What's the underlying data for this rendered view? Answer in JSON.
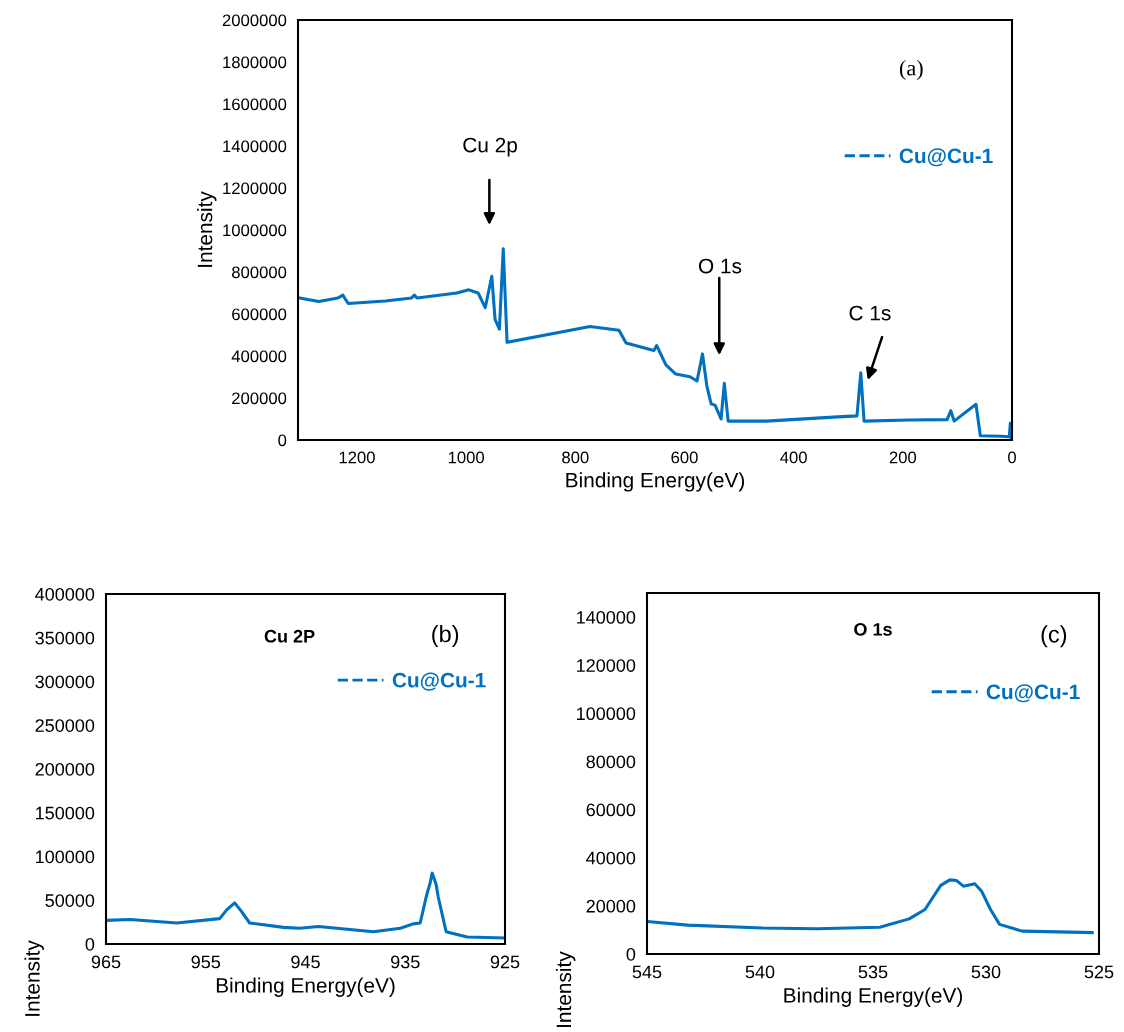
{
  "chart_data": [
    {
      "type": "line",
      "xlabel": "Binding Energy(eV)",
      "ylabel": "Intensity",
      "xlim": [
        1308,
        0
      ],
      "xticks": [
        1200,
        1000,
        800,
        600,
        400,
        200,
        0
      ],
      "ylim": [
        0,
        2000000
      ],
      "yticks": [
        0,
        200000,
        400000,
        600000,
        800000,
        1000000,
        1200000,
        1400000,
        1600000,
        1800000,
        2000000
      ],
      "grid": false,
      "legend": "top right",
      "annotations": [
        "(a)",
        "Cu 2p",
        "O 1s",
        "C 1s"
      ],
      "series": [
        {
          "name": "Cu@Cu-1",
          "color": "#0070c0",
          "x": [
            1305,
            1270,
            1235,
            1226,
            1216,
            1148,
            1100,
            1095,
            1090,
            1017,
            995,
            978,
            965,
            953,
            947,
            939,
            932,
            925,
            773,
            720,
            707,
            656,
            651,
            634,
            616,
            590,
            577,
            567,
            559,
            551,
            544,
            533,
            527,
            520,
            450,
            319,
            284,
            277,
            271,
            189,
            119,
            112,
            106,
            66,
            58,
            20,
            5,
            3,
            1
          ],
          "values": [
            676000,
            660000,
            676000,
            690000,
            650000,
            662000,
            676000,
            690000,
            676000,
            700000,
            715000,
            700000,
            630000,
            780000,
            574000,
            528000,
            910000,
            465000,
            540000,
            523000,
            462000,
            426000,
            450000,
            358000,
            314000,
            301000,
            281000,
            410000,
            257000,
            171000,
            166000,
            100000,
            270000,
            90000,
            90000,
            110000,
            115000,
            320000,
            90000,
            95000,
            97000,
            140000,
            90000,
            170000,
            20000,
            18000,
            15000,
            80000,
            10000
          ]
        }
      ]
    },
    {
      "type": "line",
      "xlabel": "Binding Energy(eV)",
      "ylabel": "Intensity",
      "xlim": [
        965,
        925
      ],
      "xticks": [
        965,
        955,
        945,
        935,
        925
      ],
      "ylim": [
        0,
        400000
      ],
      "yticks": [
        0,
        50000,
        100000,
        150000,
        200000,
        250000,
        300000,
        350000,
        400000
      ],
      "grid": false,
      "legend": "top right",
      "annotations": [
        "Cu 2P",
        "(b)"
      ],
      "series": [
        {
          "name": "Cu@Cu-1",
          "color": "#0070c0",
          "x": [
            965,
            962.6,
            957.9,
            953.6,
            952.9,
            952.1,
            951.4,
            950.6,
            947.2,
            945.6,
            943.7,
            938.2,
            935.5,
            934.2,
            933.5,
            932.9,
            932.5,
            932.3,
            931.9,
            931.7,
            930.9,
            928.8,
            925.2
          ],
          "values": [
            27000,
            28000,
            24000,
            29000,
            39000,
            47000,
            37000,
            24000,
            19000,
            18000,
            20000,
            14000,
            18000,
            23000,
            24000,
            54000,
            70000,
            81000,
            68000,
            54000,
            14000,
            8000,
            7000
          ]
        }
      ]
    },
    {
      "type": "line",
      "xlabel": "Binding Energy(eV)",
      "ylabel": "Intensity",
      "xlim": [
        545,
        525
      ],
      "xticks": [
        545,
        540,
        535,
        530,
        525
      ],
      "ylim": [
        0,
        150000
      ],
      "yticks": [
        0,
        20000,
        40000,
        60000,
        80000,
        100000,
        120000,
        140000
      ],
      "grid": false,
      "legend": "top right",
      "annotations": [
        "O 1s",
        "(c)"
      ],
      "series": [
        {
          "name": "Cu@Cu-1",
          "color": "#0070c0",
          "x": [
            545,
            543.2,
            539.9,
            537.5,
            534.7,
            533.4,
            532.7,
            532.0,
            531.6,
            531.3,
            531.0,
            530.5,
            530.2,
            529.8,
            529.4,
            528.4,
            525.3
          ],
          "values": [
            13500,
            12000,
            10800,
            10500,
            11100,
            14600,
            18500,
            28500,
            30800,
            30500,
            28200,
            29200,
            26200,
            18500,
            12300,
            9500,
            8900
          ]
        }
      ]
    }
  ]
}
